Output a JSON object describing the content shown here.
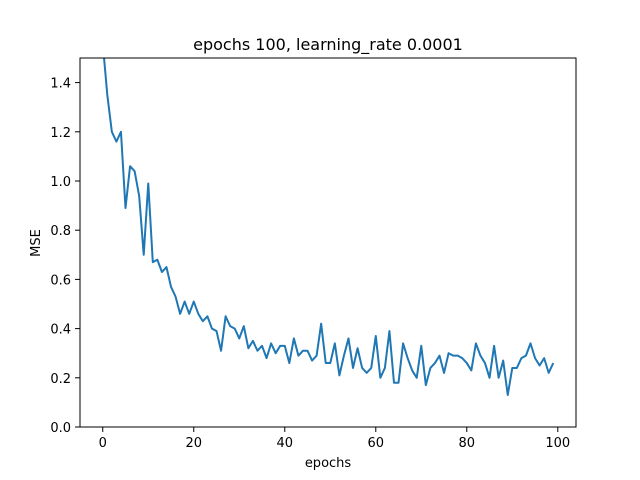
{
  "chart_data": {
    "type": "line",
    "title": "epochs 100, learning_rate 0.0001",
    "xlabel": "epochs",
    "ylabel": "MSE",
    "xlim": [
      -5,
      104
    ],
    "ylim": [
      0.0,
      1.5
    ],
    "xticks": [
      0,
      20,
      40,
      60,
      80,
      100
    ],
    "yticks": [
      0.0,
      0.2,
      0.4,
      0.6,
      0.8,
      1.0,
      1.2,
      1.4
    ],
    "xtick_labels": [
      "0",
      "20",
      "40",
      "60",
      "80",
      "100"
    ],
    "ytick_labels": [
      "0.0",
      "0.2",
      "0.4",
      "0.6",
      "0.8",
      "1.0",
      "1.2",
      "1.4"
    ],
    "grid": false,
    "legend": "none",
    "series": [
      {
        "color": "#1f77b4",
        "x": [
          0,
          1,
          2,
          3,
          4,
          5,
          6,
          7,
          8,
          9,
          10,
          11,
          12,
          13,
          14,
          15,
          16,
          17,
          18,
          19,
          20,
          21,
          22,
          23,
          24,
          25,
          26,
          27,
          28,
          29,
          30,
          31,
          32,
          33,
          34,
          35,
          36,
          37,
          38,
          39,
          40,
          41,
          42,
          43,
          44,
          45,
          46,
          47,
          48,
          49,
          50,
          51,
          52,
          53,
          54,
          55,
          56,
          57,
          58,
          59,
          60,
          61,
          62,
          63,
          64,
          65,
          66,
          67,
          68,
          69,
          70,
          71,
          72,
          73,
          74,
          75,
          76,
          77,
          78,
          79,
          80,
          81,
          82,
          83,
          84,
          85,
          86,
          87,
          88,
          89,
          90,
          91,
          92,
          93,
          94,
          95,
          96,
          97,
          98,
          99
        ],
        "values": [
          1.56,
          1.35,
          1.2,
          1.16,
          1.2,
          0.89,
          1.06,
          1.04,
          0.94,
          0.7,
          0.99,
          0.67,
          0.68,
          0.63,
          0.65,
          0.57,
          0.53,
          0.46,
          0.51,
          0.46,
          0.51,
          0.46,
          0.43,
          0.45,
          0.4,
          0.39,
          0.31,
          0.45,
          0.41,
          0.4,
          0.36,
          0.41,
          0.32,
          0.35,
          0.31,
          0.33,
          0.28,
          0.34,
          0.3,
          0.33,
          0.33,
          0.26,
          0.36,
          0.29,
          0.31,
          0.31,
          0.27,
          0.29,
          0.42,
          0.26,
          0.26,
          0.34,
          0.21,
          0.29,
          0.36,
          0.24,
          0.32,
          0.24,
          0.22,
          0.24,
          0.37,
          0.2,
          0.24,
          0.39,
          0.18,
          0.18,
          0.34,
          0.28,
          0.23,
          0.2,
          0.33,
          0.17,
          0.24,
          0.26,
          0.29,
          0.22,
          0.3,
          0.29,
          0.29,
          0.28,
          0.26,
          0.23,
          0.34,
          0.29,
          0.26,
          0.2,
          0.33,
          0.2,
          0.27,
          0.13,
          0.24,
          0.24,
          0.28,
          0.29,
          0.34,
          0.28,
          0.25,
          0.28,
          0.22,
          0.26
        ]
      }
    ]
  }
}
